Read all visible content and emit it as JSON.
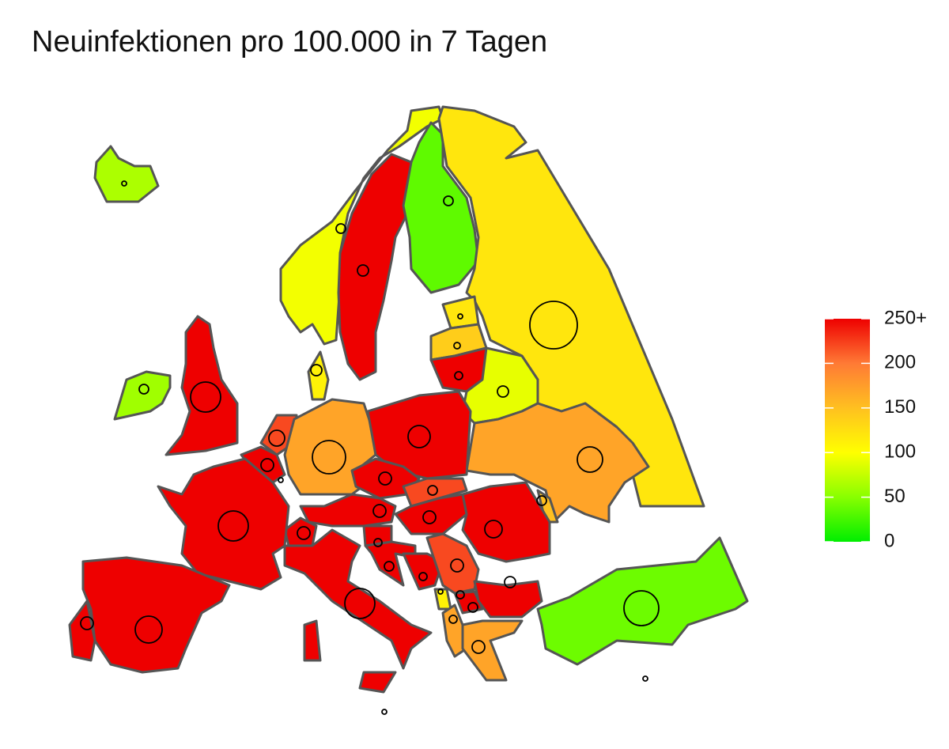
{
  "chart_data": {
    "type": "choropleth",
    "title": "Neuinfektionen pro 100.000 in 7 Tagen",
    "values": [
      65,
      95,
      300,
      35,
      120,
      120,
      140,
      300,
      90,
      170,
      150,
      300,
      60,
      110,
      220,
      300,
      170,
      300,
      300,
      220,
      300,
      300,
      300,
      300,
      300,
      300,
      300,
      220,
      110,
      170,
      300,
      300,
      170,
      40,
      300,
      300,
      300,
      300,
      300,
      300
    ],
    "colorbar": {
      "lim": [
        0,
        250
      ],
      "ticks": [
        0,
        50,
        100,
        150,
        200,
        {
          "value": 250,
          "label": "250+"
        }
      ],
      "colors": [
        "#00ee00",
        "#88ff00",
        "#ffff00",
        "#ffc020",
        "#ff7a35",
        "#ee0000"
      ]
    }
  }
}
